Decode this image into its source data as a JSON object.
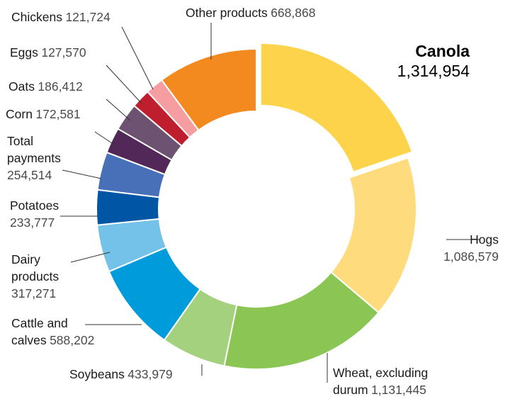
{
  "chart_data": {
    "type": "pie",
    "variant": "donut",
    "exploded_slice": "Canola",
    "slices": [
      {
        "label": "Canola",
        "value": 1314954,
        "value_text": "1,314,954",
        "color": "#FDD34B"
      },
      {
        "label": "Hogs",
        "value": 1086579,
        "value_text": "1,086,579",
        "color": "#FEDC7E"
      },
      {
        "label": "Wheat, excluding durum",
        "value": 1131445,
        "value_text": "1,131,445",
        "color": "#8BC554"
      },
      {
        "label": "Soybeans",
        "value": 433979,
        "value_text": "433,979",
        "color": "#A4D17E"
      },
      {
        "label": "Cattle and calves",
        "value": 588202,
        "value_text": "588,202",
        "color": "#009BDB"
      },
      {
        "label": "Dairy products",
        "value": 317271,
        "value_text": "317,271",
        "color": "#74C1EA"
      },
      {
        "label": "Potatoes",
        "value": 233777,
        "value_text": "233,777",
        "color": "#0055A5"
      },
      {
        "label": "Total payments",
        "value": 254514,
        "value_text": "254,514",
        "color": "#4870B8"
      },
      {
        "label": "Corn",
        "value": 172581,
        "value_text": "172,581",
        "color": "#512857"
      },
      {
        "label": "Oats",
        "value": 186412,
        "value_text": "186,412",
        "color": "#6E5272"
      },
      {
        "label": "Eggs",
        "value": 127570,
        "value_text": "127,570",
        "color": "#BE1E2D"
      },
      {
        "label": "Chickens",
        "value": 121724,
        "value_text": "121,724",
        "color": "#F59DA0"
      },
      {
        "label": "Other products",
        "value": 668868,
        "value_text": "668,868",
        "color": "#F38A20"
      }
    ]
  }
}
